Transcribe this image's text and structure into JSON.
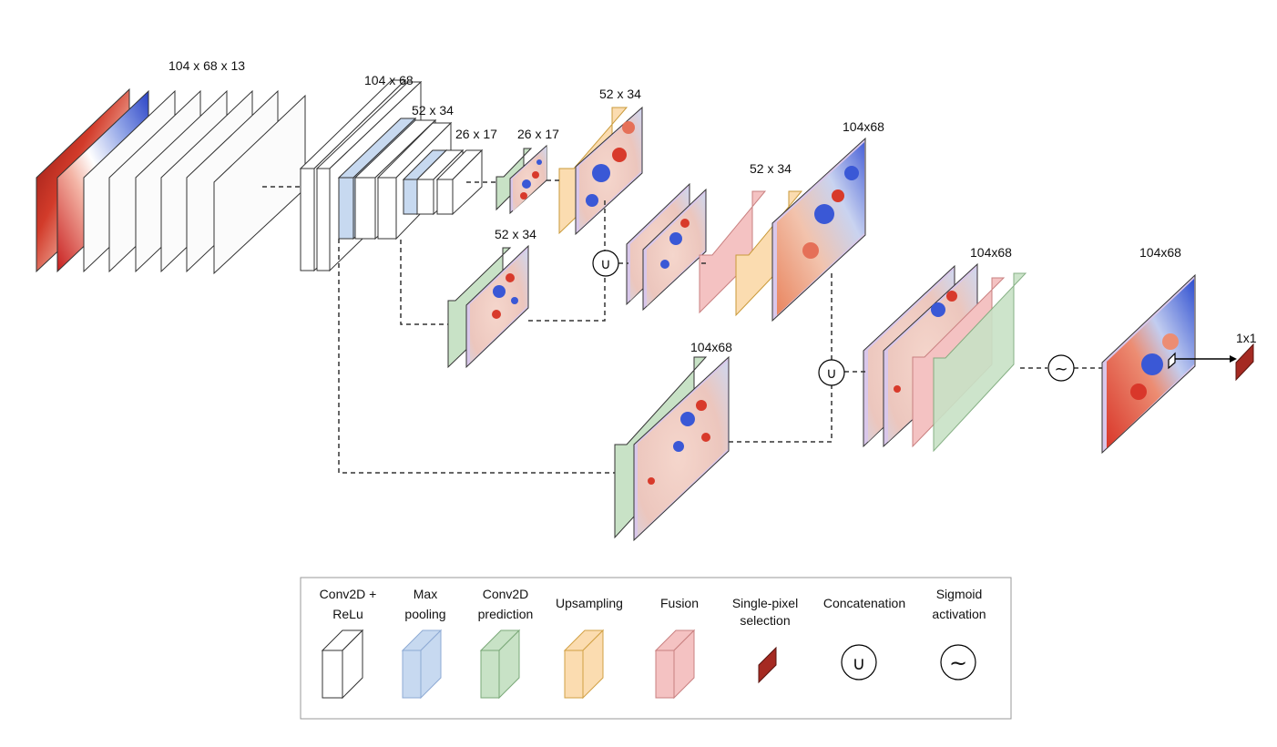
{
  "dimension_labels": {
    "input": "104 x 68 x 13",
    "block1": "104 x 68",
    "block2": "52 x 34",
    "block3": "26 x 17",
    "pred_26": "26 x 17",
    "pred_52_top": "52 x 34",
    "pred_52_mid": "52 x 34",
    "fuse_52": "52 x 34",
    "up_104": "104x68",
    "pred_104": "104x68",
    "fuse_104": "104x68",
    "output": "104x68",
    "pixel": "1x1"
  },
  "legend": {
    "items": [
      {
        "line1": "Conv2D +",
        "line2": "ReLu",
        "color": "#ffffff"
      },
      {
        "line1": "Max",
        "line2": "pooling",
        "color": "#c7d9f0"
      },
      {
        "line1": "Conv2D",
        "line2": "prediction",
        "color": "#c8e2c6"
      },
      {
        "line1": "Upsampling",
        "line2": "",
        "color": "#fbdcb0"
      },
      {
        "line1": "Fusion",
        "line2": "",
        "color": "#f4c2c2"
      },
      {
        "line1": "Single-pixel",
        "line2": "selection",
        "color": "#a52a22"
      },
      {
        "line1": "Concatenation",
        "line2": "",
        "symbol": "∪"
      },
      {
        "line1": "Sigmoid",
        "line2": "activation",
        "symbol": "~"
      }
    ]
  },
  "symbols": {
    "union": "∪",
    "sigmoid": "~"
  },
  "colors": {
    "conv": "#ffffff",
    "pool": "#c7d9f0",
    "prediction": "#c8e2c6",
    "upsampling": "#fbdcb0",
    "fusion": "#f4c2c2",
    "map_frame": "#d9c7ea",
    "pixel": "#a52a22",
    "heat_red": "#d83a2b",
    "heat_blue": "#3a58d6",
    "heat_neutral": "#f1dcd3"
  }
}
